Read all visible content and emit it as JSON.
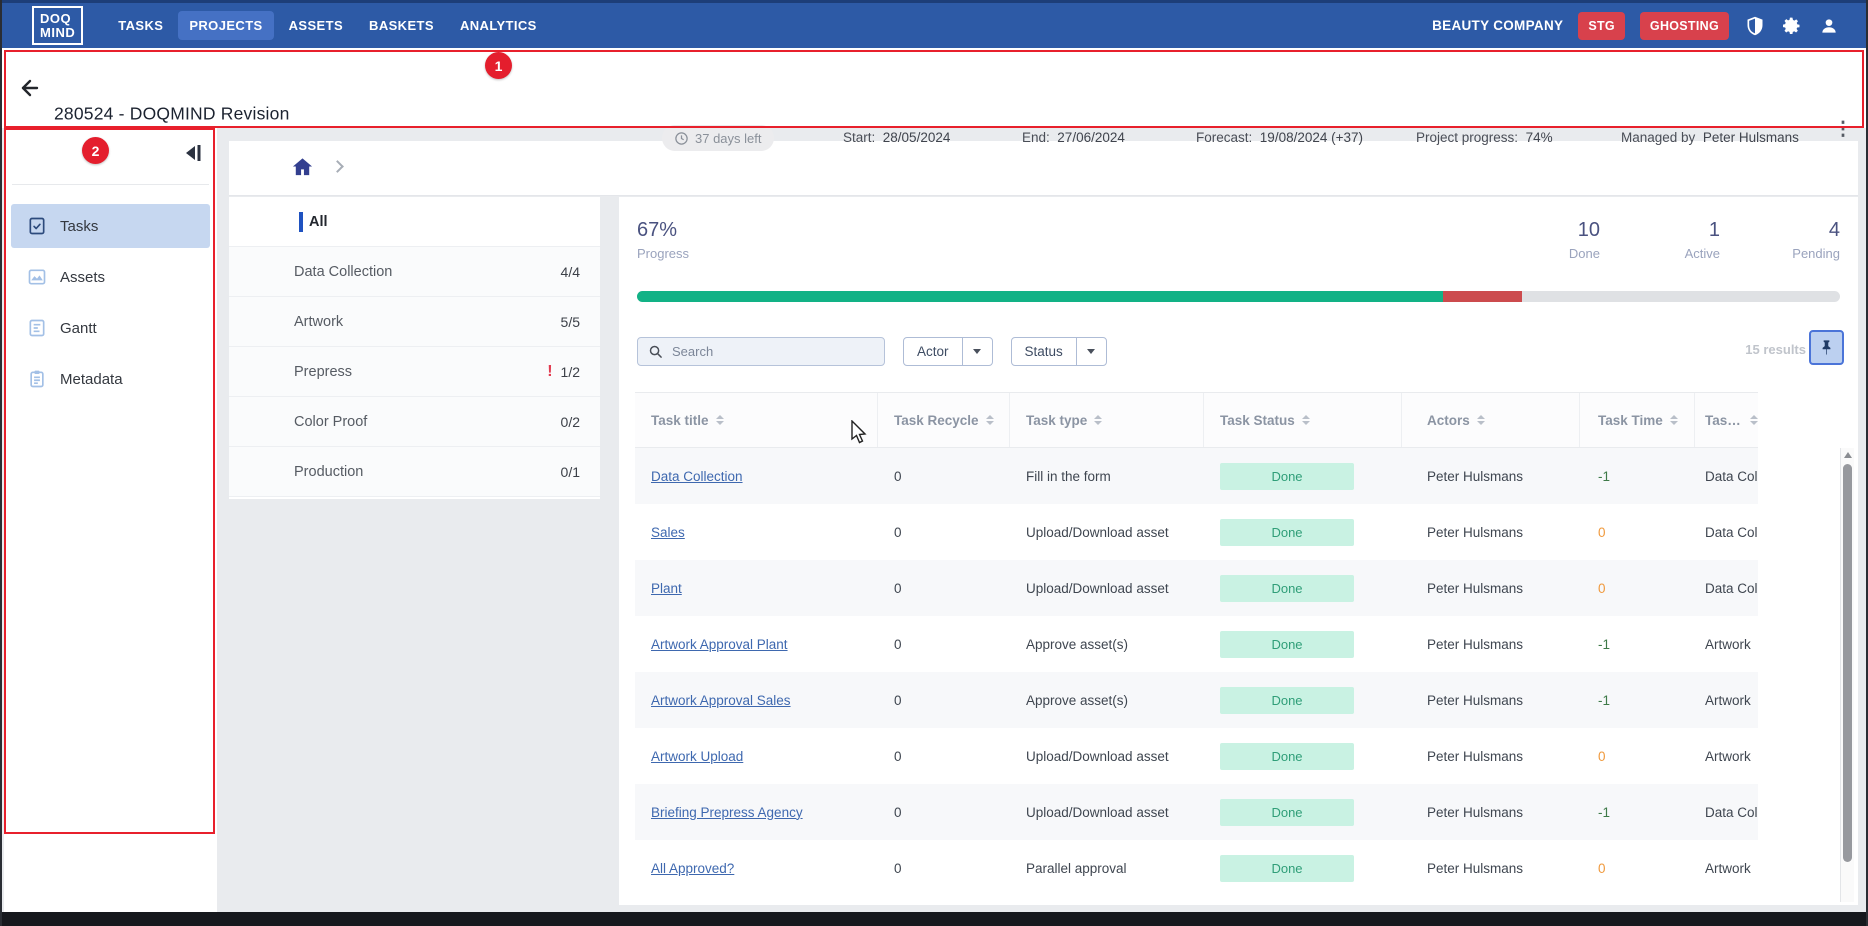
{
  "topnav": {
    "logo_line1": "DOQ",
    "logo_line2": "MIND",
    "items": [
      {
        "label": "TASKS",
        "active": false
      },
      {
        "label": "PROJECTS",
        "active": true
      },
      {
        "label": "ASSETS",
        "active": false
      },
      {
        "label": "BASKETS",
        "active": false
      },
      {
        "label": "ANALYTICS",
        "active": false
      }
    ],
    "company": "BEAUTY COMPANY",
    "env_badge": "STG",
    "ghosting_badge": "GHOSTING"
  },
  "project_header": {
    "title": "280524 - DOQMIND Revision",
    "days_left": "37 days left",
    "start_label": "Start:",
    "start_value": "28/05/2024",
    "end_label": "End:",
    "end_value": "27/06/2024",
    "forecast_label": "Forecast:",
    "forecast_value": "19/08/2024 (+37)",
    "progress_label": "Project progress:",
    "progress_value": "74%",
    "managed_by_label": "Managed by",
    "manager_name": "Peter Hulsmans"
  },
  "annotations": {
    "one": "1",
    "two": "2"
  },
  "sidebar": {
    "items": [
      {
        "label": "Tasks",
        "icon": "tasks-icon",
        "selected": true
      },
      {
        "label": "Assets",
        "icon": "assets-icon",
        "selected": false
      },
      {
        "label": "Gantt",
        "icon": "gantt-icon",
        "selected": false
      },
      {
        "label": "Metadata",
        "icon": "metadata-icon",
        "selected": false
      }
    ]
  },
  "categories": {
    "all_label": "All",
    "items": [
      {
        "label": "Data Collection",
        "count": "4/4",
        "alert": false
      },
      {
        "label": "Artwork",
        "count": "5/5",
        "alert": false
      },
      {
        "label": "Prepress",
        "count": "1/2",
        "alert": true
      },
      {
        "label": "Color Proof",
        "count": "0/2",
        "alert": false
      },
      {
        "label": "Production",
        "count": "0/1",
        "alert": false
      }
    ]
  },
  "stats": {
    "progress_pct": "67%",
    "progress_label": "Progress",
    "summary": [
      {
        "value": "10",
        "label": "Done"
      },
      {
        "value": "1",
        "label": "Active"
      },
      {
        "value": "4",
        "label": "Pending"
      }
    ],
    "bar": {
      "green_pct": 67,
      "red_pct": 6.6
    }
  },
  "filters": {
    "search_placeholder": "Search",
    "actor_label": "Actor",
    "status_label": "Status",
    "results_count": "15",
    "results_label": "results"
  },
  "table": {
    "columns": [
      "Task title",
      "Task Recycle",
      "Task type",
      "Task Status",
      "Actors",
      "Task Time",
      "Task group"
    ],
    "rows": [
      {
        "title": "Data Collection",
        "recycle": "0",
        "type": "Fill in the form",
        "status": "Done",
        "actors": "Peter Hulsmans",
        "time": "-1",
        "time_tone": "green",
        "group": "Data Collection"
      },
      {
        "title": "Sales",
        "recycle": "0",
        "type": "Upload/Download asset",
        "status": "Done",
        "actors": "Peter Hulsmans",
        "time": "0",
        "time_tone": "orange",
        "group": "Data Collection"
      },
      {
        "title": "Plant",
        "recycle": "0",
        "type": "Upload/Download asset",
        "status": "Done",
        "actors": "Peter Hulsmans",
        "time": "0",
        "time_tone": "orange",
        "group": "Data Collection"
      },
      {
        "title": "Artwork Approval Plant",
        "recycle": "0",
        "type": "Approve asset(s)",
        "status": "Done",
        "actors": "Peter Hulsmans",
        "time": "-1",
        "time_tone": "green",
        "group": "Artwork"
      },
      {
        "title": "Artwork Approval Sales",
        "recycle": "0",
        "type": "Approve asset(s)",
        "status": "Done",
        "actors": "Peter Hulsmans",
        "time": "-1",
        "time_tone": "green",
        "group": "Artwork"
      },
      {
        "title": "Artwork Upload",
        "recycle": "0",
        "type": "Upload/Download asset",
        "status": "Done",
        "actors": "Peter Hulsmans",
        "time": "0",
        "time_tone": "orange",
        "group": "Artwork"
      },
      {
        "title": "Briefing Prepress Agency",
        "recycle": "0",
        "type": "Upload/Download asset",
        "status": "Done",
        "actors": "Peter Hulsmans",
        "time": "-1",
        "time_tone": "green",
        "group": "Data Collection"
      },
      {
        "title": "All Approved?",
        "recycle": "0",
        "type": "Parallel approval",
        "status": "Done",
        "actors": "Peter Hulsmans",
        "time": "0",
        "time_tone": "orange",
        "group": "Artwork"
      }
    ]
  },
  "colors": {
    "navbar_blue": "#2d5aa6",
    "active_nav_blue": "#4571c4",
    "badge_red": "#d8414c",
    "annotation_red": "#e8202c",
    "progress_green": "#12b286",
    "progress_red": "#cc4b4e",
    "done_badge_bg": "#c9f2e3",
    "done_badge_text": "#2f9e78",
    "link_blue": "#3e68af",
    "time_green": "#3e7a48",
    "time_orange": "#f09a3e",
    "sidebar_selected_bg": "#c6d7f0"
  }
}
